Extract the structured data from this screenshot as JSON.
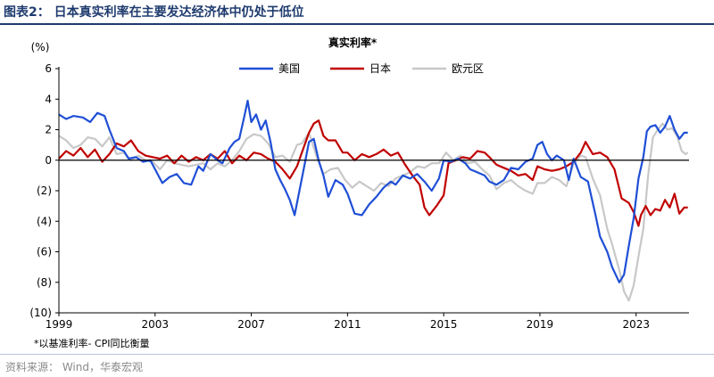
{
  "figure": {
    "title": "图表2：  日本真实利率在主要发达经济体中仍处于低位",
    "note": "*以基准利率- CPI同比衡量",
    "source": "资料来源：   Wind，华泰宏观"
  },
  "chart_data": {
    "type": "line",
    "title": "真实利率*",
    "ylabel": "(%)",
    "xlabel": "",
    "ylim": [
      -10,
      6
    ],
    "xlim": [
      1999.0,
      2025.2
    ],
    "yticks": [
      6,
      4,
      2,
      0,
      -2,
      -4,
      -6,
      -8,
      -10
    ],
    "ytick_labels": [
      "6",
      "4",
      "2",
      "0",
      "(2)",
      "(4)",
      "(6)",
      "(8)",
      "(10)"
    ],
    "xticks": [
      1999,
      2003,
      2007,
      2011,
      2015,
      2019,
      2023
    ],
    "xtick_labels": [
      "1999",
      "2003",
      "2007",
      "2011",
      "2015",
      "2019",
      "2023"
    ],
    "grid": false,
    "legend_position": "top-center",
    "series": [
      {
        "name": "美国",
        "color": "#1f4fd6",
        "points": [
          [
            1999.0,
            3.0
          ],
          [
            1999.3,
            2.7
          ],
          [
            1999.6,
            2.9
          ],
          [
            2000.0,
            2.8
          ],
          [
            2000.3,
            2.5
          ],
          [
            2000.6,
            3.1
          ],
          [
            2000.9,
            2.9
          ],
          [
            2001.1,
            2.0
          ],
          [
            2001.4,
            0.8
          ],
          [
            2001.7,
            0.6
          ],
          [
            2001.9,
            0.1
          ],
          [
            2002.2,
            0.2
          ],
          [
            2002.5,
            -0.1
          ],
          [
            2002.8,
            0.0
          ],
          [
            2003.0,
            -0.6
          ],
          [
            2003.3,
            -1.5
          ],
          [
            2003.6,
            -1.1
          ],
          [
            2003.9,
            -0.9
          ],
          [
            2004.2,
            -1.5
          ],
          [
            2004.5,
            -1.6
          ],
          [
            2004.8,
            -0.4
          ],
          [
            2005.0,
            -0.7
          ],
          [
            2005.3,
            0.4
          ],
          [
            2005.6,
            0.0
          ],
          [
            2005.8,
            -0.2
          ],
          [
            2006.1,
            0.8
          ],
          [
            2006.3,
            1.2
          ],
          [
            2006.5,
            1.4
          ],
          [
            2006.7,
            2.8
          ],
          [
            2006.85,
            3.9
          ],
          [
            2007.0,
            2.5
          ],
          [
            2007.2,
            3.0
          ],
          [
            2007.4,
            2.0
          ],
          [
            2007.6,
            2.6
          ],
          [
            2007.8,
            1.2
          ],
          [
            2008.0,
            -0.6
          ],
          [
            2008.2,
            -1.3
          ],
          [
            2008.4,
            -1.9
          ],
          [
            2008.6,
            -2.6
          ],
          [
            2008.8,
            -3.6
          ],
          [
            2009.0,
            -2.0
          ],
          [
            2009.2,
            -0.4
          ],
          [
            2009.4,
            1.2
          ],
          [
            2009.6,
            1.4
          ],
          [
            2009.8,
            0.0
          ],
          [
            2010.0,
            -1.0
          ],
          [
            2010.2,
            -2.4
          ],
          [
            2010.5,
            -1.3
          ],
          [
            2010.8,
            -1.6
          ],
          [
            2011.0,
            -2.2
          ],
          [
            2011.3,
            -3.5
          ],
          [
            2011.6,
            -3.6
          ],
          [
            2011.9,
            -2.9
          ],
          [
            2012.2,
            -2.4
          ],
          [
            2012.5,
            -1.8
          ],
          [
            2012.8,
            -1.4
          ],
          [
            2013.0,
            -1.6
          ],
          [
            2013.3,
            -1.0
          ],
          [
            2013.6,
            -1.2
          ],
          [
            2013.9,
            -0.9
          ],
          [
            2014.2,
            -1.4
          ],
          [
            2014.5,
            -2.0
          ],
          [
            2014.8,
            -1.2
          ],
          [
            2015.0,
            0.0
          ],
          [
            2015.3,
            -0.1
          ],
          [
            2015.6,
            0.1
          ],
          [
            2015.9,
            -0.2
          ],
          [
            2016.1,
            -0.6
          ],
          [
            2016.4,
            -0.8
          ],
          [
            2016.7,
            -1.0
          ],
          [
            2016.9,
            -1.4
          ],
          [
            2017.2,
            -1.6
          ],
          [
            2017.5,
            -1.3
          ],
          [
            2017.8,
            -0.5
          ],
          [
            2018.1,
            -0.6
          ],
          [
            2018.4,
            -0.1
          ],
          [
            2018.7,
            0.1
          ],
          [
            2018.9,
            1.0
          ],
          [
            2019.1,
            1.2
          ],
          [
            2019.3,
            0.4
          ],
          [
            2019.5,
            0.0
          ],
          [
            2019.7,
            0.3
          ],
          [
            2020.0,
            0.0
          ],
          [
            2020.2,
            -1.3
          ],
          [
            2020.4,
            0.1
          ],
          [
            2020.7,
            -1.1
          ],
          [
            2021.0,
            -1.4
          ],
          [
            2021.3,
            -3.5
          ],
          [
            2021.5,
            -5.0
          ],
          [
            2021.8,
            -6.0
          ],
          [
            2022.0,
            -7.0
          ],
          [
            2022.3,
            -8.0
          ],
          [
            2022.5,
            -7.5
          ],
          [
            2022.7,
            -5.6
          ],
          [
            2022.9,
            -3.8
          ],
          [
            2023.1,
            -1.2
          ],
          [
            2023.3,
            0.2
          ],
          [
            2023.45,
            1.9
          ],
          [
            2023.6,
            2.2
          ],
          [
            2023.8,
            2.3
          ],
          [
            2024.0,
            1.8
          ],
          [
            2024.2,
            2.2
          ],
          [
            2024.4,
            2.9
          ],
          [
            2024.6,
            2.0
          ],
          [
            2024.8,
            1.4
          ],
          [
            2025.0,
            1.8
          ],
          [
            2025.15,
            1.8
          ]
        ]
      },
      {
        "name": "日本",
        "color": "#c00000",
        "points": [
          [
            1999.0,
            0.1
          ],
          [
            1999.3,
            0.6
          ],
          [
            1999.6,
            0.3
          ],
          [
            1999.9,
            0.8
          ],
          [
            2000.2,
            0.2
          ],
          [
            2000.5,
            0.7
          ],
          [
            2000.8,
            -0.1
          ],
          [
            2001.1,
            0.4
          ],
          [
            2001.4,
            1.1
          ],
          [
            2001.7,
            0.9
          ],
          [
            2002.0,
            1.3
          ],
          [
            2002.3,
            0.6
          ],
          [
            2002.6,
            0.3
          ],
          [
            2002.9,
            0.2
          ],
          [
            2003.2,
            0.1
          ],
          [
            2003.5,
            0.3
          ],
          [
            2003.8,
            -0.2
          ],
          [
            2004.1,
            0.3
          ],
          [
            2004.4,
            -0.1
          ],
          [
            2004.7,
            0.2
          ],
          [
            2005.0,
            0.0
          ],
          [
            2005.3,
            0.4
          ],
          [
            2005.6,
            0.1
          ],
          [
            2005.9,
            0.6
          ],
          [
            2006.2,
            -0.2
          ],
          [
            2006.5,
            0.3
          ],
          [
            2006.8,
            0.0
          ],
          [
            2007.1,
            0.5
          ],
          [
            2007.4,
            0.4
          ],
          [
            2007.7,
            0.1
          ],
          [
            2008.0,
            -0.1
          ],
          [
            2008.3,
            -0.6
          ],
          [
            2008.6,
            -1.2
          ],
          [
            2008.9,
            -0.4
          ],
          [
            2009.1,
            0.5
          ],
          [
            2009.4,
            1.8
          ],
          [
            2009.6,
            2.4
          ],
          [
            2009.8,
            2.6
          ],
          [
            2010.0,
            1.6
          ],
          [
            2010.2,
            1.3
          ],
          [
            2010.5,
            1.3
          ],
          [
            2010.8,
            0.5
          ],
          [
            2011.0,
            0.5
          ],
          [
            2011.3,
            0.0
          ],
          [
            2011.6,
            0.4
          ],
          [
            2011.9,
            0.2
          ],
          [
            2012.2,
            0.4
          ],
          [
            2012.5,
            0.7
          ],
          [
            2012.8,
            0.3
          ],
          [
            2013.1,
            0.5
          ],
          [
            2013.4,
            -0.3
          ],
          [
            2013.7,
            -1.0
          ],
          [
            2014.0,
            -1.6
          ],
          [
            2014.2,
            -3.1
          ],
          [
            2014.4,
            -3.6
          ],
          [
            2014.7,
            -3.0
          ],
          [
            2015.0,
            -2.3
          ],
          [
            2015.2,
            -0.2
          ],
          [
            2015.5,
            0.0
          ],
          [
            2015.8,
            0.2
          ],
          [
            2016.1,
            0.1
          ],
          [
            2016.4,
            0.6
          ],
          [
            2016.7,
            0.5
          ],
          [
            2016.9,
            0.2
          ],
          [
            2017.2,
            -0.3
          ],
          [
            2017.5,
            -0.5
          ],
          [
            2017.8,
            -0.7
          ],
          [
            2018.1,
            -1.0
          ],
          [
            2018.4,
            -0.9
          ],
          [
            2018.7,
            -1.3
          ],
          [
            2018.9,
            -0.4
          ],
          [
            2019.2,
            -0.6
          ],
          [
            2019.5,
            -0.7
          ],
          [
            2019.8,
            -0.6
          ],
          [
            2020.1,
            -0.4
          ],
          [
            2020.4,
            -0.1
          ],
          [
            2020.7,
            0.5
          ],
          [
            2020.9,
            1.2
          ],
          [
            2021.2,
            0.4
          ],
          [
            2021.5,
            0.5
          ],
          [
            2021.8,
            0.2
          ],
          [
            2022.1,
            -0.6
          ],
          [
            2022.4,
            -2.5
          ],
          [
            2022.7,
            -2.8
          ],
          [
            2022.9,
            -3.4
          ],
          [
            2023.1,
            -4.3
          ],
          [
            2023.2,
            -3.6
          ],
          [
            2023.4,
            -3.0
          ],
          [
            2023.6,
            -3.6
          ],
          [
            2023.8,
            -3.2
          ],
          [
            2024.0,
            -3.3
          ],
          [
            2024.2,
            -2.6
          ],
          [
            2024.4,
            -3.1
          ],
          [
            2024.6,
            -2.2
          ],
          [
            2024.8,
            -3.5
          ],
          [
            2025.0,
            -3.1
          ],
          [
            2025.15,
            -3.1
          ]
        ]
      },
      {
        "name": "欧元区",
        "color": "#c8c8c8",
        "points": [
          [
            1999.0,
            1.6
          ],
          [
            1999.3,
            1.3
          ],
          [
            1999.6,
            0.8
          ],
          [
            1999.9,
            1.0
          ],
          [
            2000.2,
            1.5
          ],
          [
            2000.5,
            1.4
          ],
          [
            2000.8,
            0.9
          ],
          [
            2001.1,
            1.5
          ],
          [
            2001.4,
            0.4
          ],
          [
            2001.7,
            0.5
          ],
          [
            2002.0,
            0.0
          ],
          [
            2002.3,
            0.3
          ],
          [
            2002.6,
            0.0
          ],
          [
            2002.9,
            -0.1
          ],
          [
            2003.2,
            -0.6
          ],
          [
            2003.5,
            0.0
          ],
          [
            2003.8,
            -0.2
          ],
          [
            2004.1,
            -0.3
          ],
          [
            2004.4,
            -0.4
          ],
          [
            2004.7,
            -0.3
          ],
          [
            2005.0,
            -0.2
          ],
          [
            2005.3,
            -0.6
          ],
          [
            2005.6,
            -0.2
          ],
          [
            2005.9,
            -0.4
          ],
          [
            2006.2,
            0.0
          ],
          [
            2006.5,
            0.6
          ],
          [
            2006.8,
            1.4
          ],
          [
            2007.1,
            1.7
          ],
          [
            2007.4,
            1.6
          ],
          [
            2007.7,
            1.1
          ],
          [
            2008.0,
            0.2
          ],
          [
            2008.3,
            0.3
          ],
          [
            2008.6,
            -0.1
          ],
          [
            2008.9,
            1.0
          ],
          [
            2009.1,
            1.1
          ],
          [
            2009.4,
            1.8
          ],
          [
            2009.7,
            0.3
          ],
          [
            2010.0,
            -0.9
          ],
          [
            2010.3,
            -0.6
          ],
          [
            2010.6,
            -0.5
          ],
          [
            2010.9,
            -1.3
          ],
          [
            2011.2,
            -1.8
          ],
          [
            2011.5,
            -1.4
          ],
          [
            2011.8,
            -1.7
          ],
          [
            2012.1,
            -2.0
          ],
          [
            2012.4,
            -1.5
          ],
          [
            2012.7,
            -1.7
          ],
          [
            2013.0,
            -1.2
          ],
          [
            2013.3,
            -1.0
          ],
          [
            2013.6,
            -0.8
          ],
          [
            2013.9,
            -0.4
          ],
          [
            2014.2,
            -0.5
          ],
          [
            2014.5,
            -0.2
          ],
          [
            2014.8,
            -0.2
          ],
          [
            2015.1,
            0.5
          ],
          [
            2015.4,
            0.0
          ],
          [
            2015.7,
            0.3
          ],
          [
            2016.0,
            -0.2
          ],
          [
            2016.3,
            -0.1
          ],
          [
            2016.6,
            -0.6
          ],
          [
            2016.9,
            -1.0
          ],
          [
            2017.2,
            -1.9
          ],
          [
            2017.5,
            -1.5
          ],
          [
            2017.8,
            -1.3
          ],
          [
            2018.1,
            -1.7
          ],
          [
            2018.4,
            -2.0
          ],
          [
            2018.7,
            -2.2
          ],
          [
            2018.9,
            -1.5
          ],
          [
            2019.2,
            -1.5
          ],
          [
            2019.5,
            -1.1
          ],
          [
            2019.8,
            -1.3
          ],
          [
            2020.1,
            -1.7
          ],
          [
            2020.4,
            -0.2
          ],
          [
            2020.7,
            0.3
          ],
          [
            2020.9,
            0.2
          ],
          [
            2021.2,
            -1.2
          ],
          [
            2021.5,
            -2.3
          ],
          [
            2021.8,
            -4.5
          ],
          [
            2022.0,
            -5.5
          ],
          [
            2022.3,
            -7.2
          ],
          [
            2022.5,
            -8.6
          ],
          [
            2022.7,
            -9.2
          ],
          [
            2022.9,
            -8.2
          ],
          [
            2023.1,
            -6.3
          ],
          [
            2023.3,
            -4.5
          ],
          [
            2023.5,
            -1.0
          ],
          [
            2023.7,
            1.5
          ],
          [
            2023.9,
            2.0
          ],
          [
            2024.1,
            2.4
          ],
          [
            2024.3,
            2.0
          ],
          [
            2024.5,
            2.1
          ],
          [
            2024.7,
            1.6
          ],
          [
            2024.9,
            0.6
          ],
          [
            2025.05,
            0.4
          ],
          [
            2025.15,
            0.5
          ]
        ]
      }
    ]
  }
}
